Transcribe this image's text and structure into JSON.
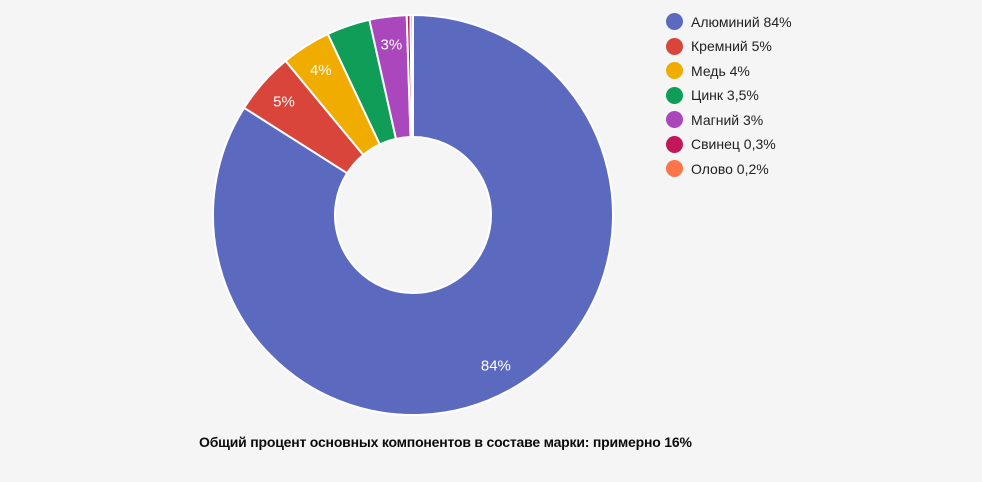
{
  "page": {
    "background_color": "#f5f5f5"
  },
  "chart_data": {
    "type": "pie",
    "donut": true,
    "title": "",
    "caption": "Общий процент основных компонентов в составе марки: примерно 16%",
    "legend_position": "right",
    "unit": "%",
    "categories": [
      "Алюминий",
      "Кремний",
      "Медь",
      "Цинк",
      "Магний",
      "Свинец",
      "Олово"
    ],
    "values": [
      84,
      5,
      4,
      3.5,
      3,
      0.3,
      0.2
    ],
    "slices": [
      {
        "name": "Алюминий",
        "slug": "aluminium",
        "value": 84,
        "percent_label": "84%",
        "legend_label": "Алюминий 84%",
        "color": "#5b6abf",
        "show_percent_on_slice": true
      },
      {
        "name": "Кремний",
        "slug": "silicon",
        "value": 5,
        "percent_label": "5%",
        "legend_label": "Кремний 5%",
        "color": "#d9453a",
        "show_percent_on_slice": true
      },
      {
        "name": "Медь",
        "slug": "copper",
        "value": 4,
        "percent_label": "4%",
        "legend_label": "Медь 4%",
        "color": "#f0ad00",
        "show_percent_on_slice": true
      },
      {
        "name": "Цинк",
        "slug": "zinc",
        "value": 3.5,
        "percent_label": "3,5%",
        "legend_label": "Цинк 3,5%",
        "color": "#0f9d58",
        "show_percent_on_slice": false
      },
      {
        "name": "Магний",
        "slug": "magnesium",
        "value": 3,
        "percent_label": "3%",
        "legend_label": "Магний 3%",
        "color": "#ab47bc",
        "show_percent_on_slice": true
      },
      {
        "name": "Свинец",
        "slug": "lead",
        "value": 0.3,
        "percent_label": "0,3%",
        "legend_label": "Свинец 0,3%",
        "color": "#c2185b",
        "show_percent_on_slice": false
      },
      {
        "name": "Олово",
        "slug": "tin",
        "value": 0.2,
        "percent_label": "0,2%",
        "legend_label": "Олово 0,2%",
        "color": "#ff7449",
        "show_percent_on_slice": false
      }
    ]
  }
}
